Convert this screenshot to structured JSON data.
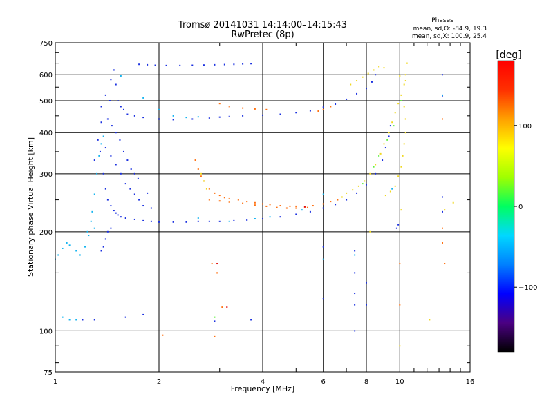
{
  "chart_data": {
    "type": "scatter",
    "title": "Tromsø 20141031 14:14:00–14:15:43",
    "subtitle": "RwPretec (8p)",
    "stats": {
      "heading": "Phases",
      "line1": "mean, sd,O: -84.9, 19.3",
      "line2": "mean, sd,X: 100.9, 25.4"
    },
    "xlabel": "Frequency [MHz]",
    "ylabel": "Stationary phase Virtual Height [km]",
    "x_scale": "log",
    "y_scale": "log",
    "xlim": [
      1,
      16
    ],
    "ylim": [
      75,
      750
    ],
    "x_ticks": [
      1,
      2,
      4,
      6,
      8,
      10,
      16
    ],
    "y_ticks": [
      75,
      100,
      200,
      300,
      400,
      500,
      600,
      750
    ],
    "grid": true,
    "colorbar": {
      "label": "[deg]",
      "range": [
        -180,
        180
      ],
      "ticks": [
        -100,
        0,
        100
      ],
      "colors": [
        "#000000",
        "#4b0082",
        "#0000ff",
        "#0080ff",
        "#00d8ff",
        "#00ff60",
        "#a0ff00",
        "#ffff00",
        "#ffa000",
        "#ff3000",
        "#ff0000"
      ]
    },
    "series": [
      {
        "color": "#1a30e0",
        "phase": -90,
        "points": [
          [
            1.42,
            440
          ],
          [
            1.45,
            580
          ],
          [
            1.48,
            620
          ],
          [
            1.5,
            560
          ],
          [
            1.52,
            500
          ],
          [
            1.55,
            480
          ],
          [
            1.58,
            470
          ],
          [
            1.62,
            455
          ],
          [
            1.7,
            450
          ],
          [
            1.8,
            445
          ],
          [
            2.0,
            440
          ],
          [
            2.2,
            438
          ],
          [
            2.5,
            440
          ],
          [
            2.8,
            443
          ],
          [
            3.0,
            446
          ],
          [
            3.2,
            448
          ],
          [
            3.5,
            450
          ],
          [
            4.0,
            452
          ],
          [
            4.5,
            455
          ],
          [
            5.0,
            460
          ],
          [
            5.5,
            466
          ],
          [
            6.0,
            478
          ],
          [
            6.5,
            488
          ],
          [
            7.0,
            505
          ],
          [
            7.5,
            525
          ],
          [
            8.0,
            545
          ],
          [
            8.3,
            570
          ],
          [
            8.5,
            600
          ],
          [
            1.75,
            645
          ],
          [
            1.85,
            643
          ],
          [
            1.95,
            641
          ],
          [
            2.1,
            640
          ],
          [
            2.3,
            640
          ],
          [
            2.5,
            641
          ],
          [
            2.7,
            642
          ],
          [
            2.9,
            643
          ],
          [
            3.1,
            644
          ],
          [
            3.3,
            645
          ],
          [
            3.5,
            647
          ],
          [
            3.7,
            648
          ],
          [
            1.3,
            330
          ],
          [
            1.33,
            380
          ],
          [
            1.36,
            430
          ],
          [
            1.38,
            300
          ],
          [
            1.4,
            270
          ],
          [
            1.42,
            250
          ],
          [
            1.45,
            240
          ],
          [
            1.48,
            232
          ],
          [
            1.5,
            228
          ],
          [
            1.52,
            225
          ],
          [
            1.55,
            222
          ],
          [
            1.6,
            220
          ],
          [
            1.7,
            218
          ],
          [
            1.8,
            216
          ],
          [
            1.9,
            215
          ],
          [
            2.0,
            214
          ],
          [
            2.2,
            214
          ],
          [
            2.4,
            214
          ],
          [
            2.6,
            215
          ],
          [
            2.8,
            215
          ],
          [
            3.0,
            215
          ],
          [
            3.3,
            216
          ],
          [
            3.6,
            217
          ],
          [
            4.0,
            219
          ],
          [
            4.5,
            222
          ],
          [
            5.0,
            226
          ],
          [
            5.5,
            230
          ],
          [
            6.0,
            236
          ],
          [
            6.5,
            242
          ],
          [
            7.0,
            250
          ],
          [
            7.5,
            262
          ],
          [
            8.0,
            278
          ],
          [
            8.5,
            300
          ],
          [
            8.9,
            330
          ],
          [
            9.1,
            360
          ],
          [
            9.3,
            390
          ],
          [
            9.4,
            420
          ],
          [
            1.35,
            350
          ],
          [
            1.4,
            360
          ],
          [
            1.45,
            340
          ],
          [
            1.5,
            320
          ],
          [
            1.55,
            300
          ],
          [
            1.6,
            280
          ],
          [
            1.65,
            270
          ],
          [
            1.7,
            260
          ],
          [
            1.75,
            250
          ],
          [
            1.8,
            240
          ],
          [
            1.85,
            262
          ],
          [
            1.9,
            236
          ],
          [
            1.36,
            480
          ],
          [
            1.4,
            520
          ],
          [
            1.44,
            500
          ],
          [
            1.46,
            420
          ],
          [
            1.5,
            400
          ],
          [
            1.54,
            380
          ],
          [
            1.58,
            350
          ],
          [
            1.62,
            330
          ],
          [
            1.66,
            310
          ],
          [
            1.7,
            300
          ],
          [
            1.74,
            290
          ],
          [
            1.4,
            190
          ],
          [
            1.38,
            180
          ],
          [
            1.36,
            175
          ],
          [
            1.42,
            200
          ],
          [
            1.45,
            205
          ],
          [
            1.6,
            110
          ],
          [
            2.9,
            107
          ],
          [
            3.7,
            108
          ],
          [
            1.8,
            112
          ],
          [
            1.3,
            108
          ],
          [
            1.2,
            108
          ],
          [
            7.4,
            175
          ],
          [
            7.4,
            150
          ],
          [
            7.4,
            130
          ],
          [
            7.4,
            120
          ],
          [
            7.4,
            100
          ],
          [
            6.0,
            180
          ],
          [
            6.0,
            125
          ],
          [
            8.0,
            140
          ],
          [
            8.0,
            120
          ],
          [
            13.3,
            600
          ],
          [
            13.3,
            518
          ],
          [
            13.3,
            230
          ],
          [
            13.3,
            255
          ],
          [
            9.9,
            210
          ],
          [
            9.8,
            205
          ]
        ]
      },
      {
        "color": "#14b4f0",
        "phase": -45,
        "points": [
          [
            1.0,
            165
          ],
          [
            1.02,
            170
          ],
          [
            1.05,
            178
          ],
          [
            1.08,
            185
          ],
          [
            1.1,
            182
          ],
          [
            1.15,
            175
          ],
          [
            1.18,
            170
          ],
          [
            1.22,
            180
          ],
          [
            1.25,
            195
          ],
          [
            1.28,
            230
          ],
          [
            1.3,
            260
          ],
          [
            1.32,
            300
          ],
          [
            1.34,
            340
          ],
          [
            1.36,
            370
          ],
          [
            1.38,
            390
          ],
          [
            1.3,
            205
          ],
          [
            1.27,
            215
          ],
          [
            1.24,
            200
          ],
          [
            1.05,
            110
          ],
          [
            1.1,
            108
          ],
          [
            1.15,
            108
          ],
          [
            1.8,
            510
          ],
          [
            2.0,
            470
          ],
          [
            2.2,
            450
          ],
          [
            2.4,
            445
          ],
          [
            2.6,
            447
          ],
          [
            3.2,
            215
          ],
          [
            4.2,
            222
          ],
          [
            5.2,
            233
          ],
          [
            6.0,
            165
          ],
          [
            6.0,
            260
          ],
          [
            7.4,
            170
          ],
          [
            9.5,
            270
          ],
          [
            13.3,
            520
          ],
          [
            1.55,
            595
          ],
          [
            2.6,
            220
          ],
          [
            3.8,
            219
          ]
        ]
      },
      {
        "color": "#ff7010",
        "phase": 140,
        "points": [
          [
            2.55,
            330
          ],
          [
            2.6,
            310
          ],
          [
            2.65,
            295
          ],
          [
            2.7,
            285
          ],
          [
            2.8,
            270
          ],
          [
            2.9,
            262
          ],
          [
            3.0,
            258
          ],
          [
            3.1,
            254
          ],
          [
            3.2,
            252
          ],
          [
            3.4,
            250
          ],
          [
            3.6,
            247
          ],
          [
            3.8,
            245
          ],
          [
            4.0,
            243
          ],
          [
            4.2,
            242
          ],
          [
            4.5,
            240
          ],
          [
            4.8,
            239
          ],
          [
            5.0,
            239
          ],
          [
            5.3,
            238
          ],
          [
            5.6,
            240
          ],
          [
            6.0,
            243
          ],
          [
            6.3,
            247
          ],
          [
            6.6,
            250
          ],
          [
            2.8,
            250
          ],
          [
            3.0,
            248
          ],
          [
            3.2,
            246
          ],
          [
            3.5,
            244
          ],
          [
            3.8,
            241
          ],
          [
            4.1,
            239
          ],
          [
            4.4,
            237
          ],
          [
            4.7,
            236
          ],
          [
            5.0,
            236
          ],
          [
            5.4,
            237
          ],
          [
            3.0,
            490
          ],
          [
            3.2,
            480
          ],
          [
            3.5,
            475
          ],
          [
            3.8,
            472
          ],
          [
            4.1,
            470
          ],
          [
            6.0,
            470
          ],
          [
            6.3,
            480
          ],
          [
            5.8,
            465
          ],
          [
            2.85,
            160
          ],
          [
            2.95,
            150
          ],
          [
            3.05,
            118
          ],
          [
            13.3,
            440
          ],
          [
            13.3,
            185
          ],
          [
            13.3,
            205
          ],
          [
            10.0,
            160
          ],
          [
            10.0,
            120
          ],
          [
            2.9,
            96
          ],
          [
            2.05,
            97
          ],
          [
            13.5,
            160
          ]
        ]
      },
      {
        "color": "#f0d820",
        "phase": 100,
        "points": [
          [
            2.75,
            270
          ],
          [
            2.65,
            300
          ],
          [
            2.7,
            285
          ],
          [
            6.8,
            255
          ],
          [
            7.0,
            262
          ],
          [
            7.3,
            268
          ],
          [
            7.6,
            275
          ],
          [
            7.9,
            285
          ],
          [
            8.2,
            300
          ],
          [
            8.5,
            320
          ],
          [
            8.8,
            345
          ],
          [
            9.0,
            370
          ],
          [
            9.3,
            400
          ],
          [
            9.5,
            430
          ],
          [
            9.7,
            460
          ],
          [
            9.9,
            490
          ],
          [
            10.1,
            520
          ],
          [
            10.3,
            560
          ],
          [
            10.4,
            600
          ],
          [
            10.5,
            650
          ],
          [
            10.3,
            480
          ],
          [
            10.4,
            440
          ],
          [
            10.4,
            400
          ],
          [
            10.3,
            370
          ],
          [
            10.2,
            340
          ],
          [
            10.1,
            315
          ],
          [
            9.9,
            295
          ],
          [
            9.7,
            275
          ],
          [
            9.4,
            265
          ],
          [
            9.1,
            258
          ],
          [
            7.2,
            560
          ],
          [
            7.5,
            575
          ],
          [
            7.8,
            590
          ],
          [
            8.1,
            605
          ],
          [
            8.4,
            620
          ],
          [
            8.7,
            635
          ],
          [
            9.0,
            630
          ],
          [
            10.0,
            595
          ],
          [
            10.4,
            575
          ],
          [
            13.5,
            233
          ],
          [
            14.3,
            245
          ],
          [
            12.2,
            108
          ],
          [
            10.0,
            90
          ],
          [
            10.1,
            233
          ],
          [
            8.2,
            200
          ]
        ]
      },
      {
        "color": "#60f040",
        "phase": 40,
        "points": [
          [
            8.4,
            315
          ],
          [
            8.7,
            340
          ],
          [
            9.2,
            380
          ],
          [
            9.6,
            420
          ],
          [
            10.1,
            500
          ],
          [
            2.9,
            110
          ],
          [
            7.8,
            280
          ]
        ]
      },
      {
        "color": "#e01010",
        "phase": 170,
        "points": [
          [
            2.95,
            160
          ],
          [
            3.15,
            118
          ],
          [
            5.3,
            238
          ]
        ]
      }
    ]
  }
}
